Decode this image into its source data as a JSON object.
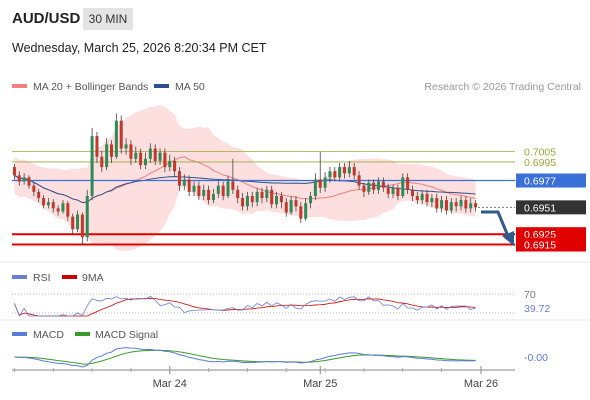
{
  "header": {
    "symbol": "AUD/USD",
    "timeframe": "30 MIN",
    "datetime": "Wednesday, March 25, 2026 8:20:34 PM CET"
  },
  "legend": {
    "ma20_bb": "MA 20 + Bollinger Bands",
    "ma50": "MA 50",
    "credit": "Research © 2026 Trading Central",
    "rsi": "RSI",
    "rsi_ma": "9MA",
    "macd": "MACD",
    "macd_signal": "MACD Signal"
  },
  "colors": {
    "candle_up": "#2e8b57",
    "candle_down": "#c0392b",
    "bollinger_fill": "#fdd9d9",
    "ma20": "#f08080",
    "ma50": "#2e4e8e",
    "pivot": "#3a6fd8",
    "resistance": "#9aaa3a",
    "support": "#e00000",
    "last_price": "#333333",
    "rsi": "#6a7fd0",
    "rsi_ma": "#cc0000",
    "macd": "#5b7bd8",
    "macd_signal": "#3a9a2a",
    "arrow": "#2e5a8e"
  },
  "chart_data": {
    "type": "candlestick",
    "price_axis": {
      "ylim": [
        0.69,
        0.7055
      ]
    },
    "levels": [
      {
        "kind": "resistance",
        "value": 0.7005,
        "label": "0.7005"
      },
      {
        "kind": "resistance",
        "value": 0.6995,
        "label": "0.6995"
      },
      {
        "kind": "pivot",
        "value": 0.6977,
        "label": "0.6977"
      },
      {
        "kind": "last",
        "value": 0.6951,
        "label": "0.6951"
      },
      {
        "kind": "support",
        "value": 0.6925,
        "label": "0.6925"
      },
      {
        "kind": "support",
        "value": 0.6915,
        "label": "0.6915"
      }
    ],
    "x_ticks": [
      "Mar 24",
      "Mar 25",
      "Mar 26"
    ],
    "candles": [
      [
        0.699,
        0.6982,
        0.6993,
        0.6978
      ],
      [
        0.6982,
        0.6976,
        0.6986,
        0.6972
      ],
      [
        0.6976,
        0.698,
        0.6984,
        0.6973
      ],
      [
        0.698,
        0.6972,
        0.6982,
        0.6969
      ],
      [
        0.6972,
        0.6966,
        0.6975,
        0.6962
      ],
      [
        0.6966,
        0.696,
        0.6969,
        0.6956
      ],
      [
        0.696,
        0.6953,
        0.6963,
        0.695
      ],
      [
        0.6953,
        0.6956,
        0.696,
        0.695
      ],
      [
        0.6956,
        0.695,
        0.6959,
        0.6946
      ],
      [
        0.695,
        0.6947,
        0.6953,
        0.6943
      ],
      [
        0.6947,
        0.6955,
        0.6958,
        0.6945
      ],
      [
        0.6955,
        0.6942,
        0.6957,
        0.6938
      ],
      [
        0.6942,
        0.693,
        0.6945,
        0.6924
      ],
      [
        0.693,
        0.6944,
        0.6948,
        0.6927
      ],
      [
        0.6944,
        0.6922,
        0.6946,
        0.6915
      ],
      [
        0.6922,
        0.6962,
        0.6968,
        0.6918
      ],
      [
        0.6962,
        0.702,
        0.7028,
        0.6958
      ],
      [
        0.702,
        0.7,
        0.7024,
        0.6994
      ],
      [
        0.7,
        0.699,
        0.7006,
        0.6985
      ],
      [
        0.699,
        0.7012,
        0.7018,
        0.6987
      ],
      [
        0.7012,
        0.7,
        0.7016,
        0.6994
      ],
      [
        0.7,
        0.7035,
        0.7042,
        0.6998
      ],
      [
        0.7035,
        0.7008,
        0.704,
        0.7003
      ],
      [
        0.7008,
        0.7012,
        0.7018,
        0.7002
      ],
      [
        0.7012,
        0.6998,
        0.7016,
        0.6992
      ],
      [
        0.6998,
        0.7004,
        0.701,
        0.6994
      ],
      [
        0.7004,
        0.6992,
        0.7008,
        0.6988
      ],
      [
        0.6992,
        0.6998,
        0.7004,
        0.6988
      ],
      [
        0.6998,
        0.7008,
        0.7013,
        0.6994
      ],
      [
        0.7008,
        0.6996,
        0.7012,
        0.6992
      ],
      [
        0.6996,
        0.7004,
        0.7008,
        0.6992
      ],
      [
        0.7004,
        0.699,
        0.7008,
        0.6985
      ],
      [
        0.699,
        0.6996,
        0.7002,
        0.6986
      ],
      [
        0.6996,
        0.6986,
        0.7,
        0.6981
      ],
      [
        0.6986,
        0.6972,
        0.699,
        0.6967
      ],
      [
        0.6972,
        0.6978,
        0.6983,
        0.6968
      ],
      [
        0.6978,
        0.6966,
        0.6982,
        0.6962
      ],
      [
        0.6966,
        0.6972,
        0.6976,
        0.6962
      ],
      [
        0.6972,
        0.6962,
        0.6976,
        0.6958
      ],
      [
        0.6962,
        0.6968,
        0.6973,
        0.6958
      ],
      [
        0.6968,
        0.6958,
        0.6972,
        0.6954
      ],
      [
        0.6958,
        0.6964,
        0.6969,
        0.6955
      ],
      [
        0.6964,
        0.6972,
        0.6977,
        0.696
      ],
      [
        0.6972,
        0.6962,
        0.6976,
        0.6958
      ],
      [
        0.6962,
        0.6976,
        0.6982,
        0.696
      ],
      [
        0.6976,
        0.6968,
        0.6998,
        0.6964
      ],
      [
        0.6968,
        0.696,
        0.6972,
        0.6955
      ],
      [
        0.696,
        0.6952,
        0.6965,
        0.6948
      ],
      [
        0.6952,
        0.6962,
        0.6966,
        0.6948
      ],
      [
        0.6962,
        0.6956,
        0.6966,
        0.6951
      ],
      [
        0.6956,
        0.6966,
        0.697,
        0.6952
      ],
      [
        0.6966,
        0.696,
        0.697,
        0.6955
      ],
      [
        0.696,
        0.6968,
        0.6972,
        0.6956
      ],
      [
        0.6968,
        0.6954,
        0.6972,
        0.695
      ],
      [
        0.6954,
        0.6962,
        0.6966,
        0.695
      ],
      [
        0.6962,
        0.6956,
        0.6966,
        0.695
      ],
      [
        0.6956,
        0.6946,
        0.696,
        0.6942
      ],
      [
        0.6946,
        0.6958,
        0.6962,
        0.6944
      ],
      [
        0.6958,
        0.6952,
        0.6962,
        0.6947
      ],
      [
        0.6952,
        0.694,
        0.6956,
        0.6936
      ],
      [
        0.694,
        0.6955,
        0.696,
        0.6938
      ],
      [
        0.6955,
        0.6962,
        0.6966,
        0.695
      ],
      [
        0.6962,
        0.6978,
        0.6984,
        0.6958
      ],
      [
        0.6978,
        0.697,
        0.7005,
        0.6965
      ],
      [
        0.697,
        0.698,
        0.6985,
        0.6966
      ],
      [
        0.698,
        0.6986,
        0.699,
        0.6975
      ],
      [
        0.6986,
        0.698,
        0.699,
        0.6976
      ],
      [
        0.698,
        0.699,
        0.6994,
        0.6976
      ],
      [
        0.699,
        0.6984,
        0.6994,
        0.6979
      ],
      [
        0.6984,
        0.699,
        0.6996,
        0.698
      ],
      [
        0.699,
        0.6982,
        0.6994,
        0.6978
      ],
      [
        0.6982,
        0.6972,
        0.6986,
        0.6968
      ],
      [
        0.6972,
        0.6966,
        0.6975,
        0.6961
      ],
      [
        0.6966,
        0.6975,
        0.6978,
        0.6963
      ],
      [
        0.6975,
        0.6968,
        0.6978,
        0.6964
      ],
      [
        0.6968,
        0.6976,
        0.698,
        0.6964
      ],
      [
        0.6976,
        0.697,
        0.698,
        0.6966
      ],
      [
        0.697,
        0.6964,
        0.6974,
        0.696
      ],
      [
        0.6964,
        0.697,
        0.6973,
        0.696
      ],
      [
        0.697,
        0.6962,
        0.6973,
        0.6958
      ],
      [
        0.6962,
        0.698,
        0.6984,
        0.696
      ],
      [
        0.698,
        0.6968,
        0.6984,
        0.6964
      ],
      [
        0.6968,
        0.6962,
        0.6972,
        0.6957
      ],
      [
        0.6962,
        0.6958,
        0.6966,
        0.6954
      ],
      [
        0.6958,
        0.6964,
        0.6967,
        0.6954
      ],
      [
        0.6964,
        0.6956,
        0.6968,
        0.6952
      ],
      [
        0.6956,
        0.696,
        0.6964,
        0.6951
      ],
      [
        0.696,
        0.695,
        0.6964,
        0.6946
      ],
      [
        0.695,
        0.6958,
        0.6962,
        0.6946
      ],
      [
        0.6958,
        0.6948,
        0.6962,
        0.6944
      ],
      [
        0.6948,
        0.6956,
        0.696,
        0.6945
      ],
      [
        0.6956,
        0.6952,
        0.696,
        0.6947
      ],
      [
        0.6952,
        0.6958,
        0.6962,
        0.6948
      ],
      [
        0.6958,
        0.695,
        0.6962,
        0.6946
      ],
      [
        0.695,
        0.6955,
        0.696,
        0.6946
      ],
      [
        0.6955,
        0.6951,
        0.6958,
        0.6947
      ]
    ],
    "rsi": {
      "levels": [
        70,
        30
      ],
      "label_70": "70",
      "last_value": "39.72"
    },
    "macd": {
      "last_value": "-0.00"
    }
  }
}
